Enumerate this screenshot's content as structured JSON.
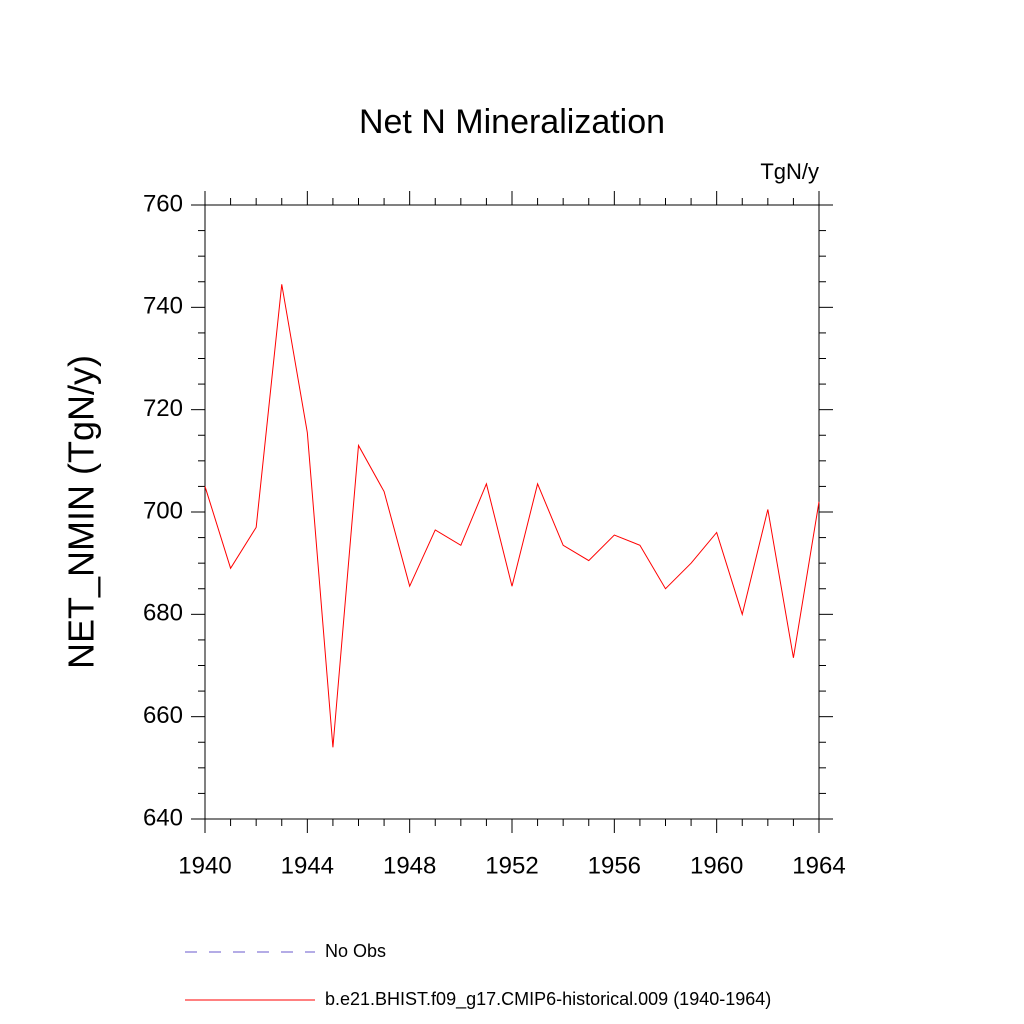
{
  "chart_data": {
    "type": "line",
    "title": "Net N Mineralization",
    "units": "TgN/y",
    "y_label": "NET_NMIN  (TgN/y)",
    "x": [
      1940,
      1941,
      1942,
      1943,
      1944,
      1945,
      1946,
      1947,
      1948,
      1949,
      1950,
      1951,
      1952,
      1953,
      1954,
      1955,
      1956,
      1957,
      1958,
      1959,
      1960,
      1961,
      1962,
      1963,
      1964
    ],
    "series": [
      {
        "name": "b.e21.BHIST.f09_g17.CMIP6-historical.009 (1940-1964)",
        "color": "#ff0000",
        "values": [
          705,
          689,
          697,
          744.5,
          715.5,
          654,
          713,
          704,
          685.5,
          696.5,
          693.5,
          705.5,
          685.5,
          705.5,
          693.5,
          690.5,
          695.5,
          693.5,
          685,
          690,
          696,
          680,
          700.5,
          671.5,
          702
        ]
      }
    ],
    "legend_extra": [
      {
        "name": "No Obs",
        "color": "#6a5acd",
        "dash": "12 12"
      }
    ],
    "xlim": [
      1940,
      1964
    ],
    "xticks": [
      1940,
      1944,
      1948,
      1952,
      1956,
      1960,
      1964
    ],
    "xminor_ticks": [
      1941,
      1942,
      1943,
      1945,
      1946,
      1947,
      1949,
      1950,
      1951,
      1953,
      1954,
      1955,
      1957,
      1958,
      1959,
      1961,
      1962,
      1963
    ],
    "ylim": [
      640,
      760
    ],
    "yticks": [
      640,
      660,
      680,
      700,
      720,
      740,
      760
    ],
    "yminor_ticks": [
      645,
      650,
      655,
      665,
      670,
      675,
      685,
      690,
      695,
      705,
      710,
      715,
      725,
      730,
      735,
      745,
      750,
      755
    ],
    "grid": false
  }
}
